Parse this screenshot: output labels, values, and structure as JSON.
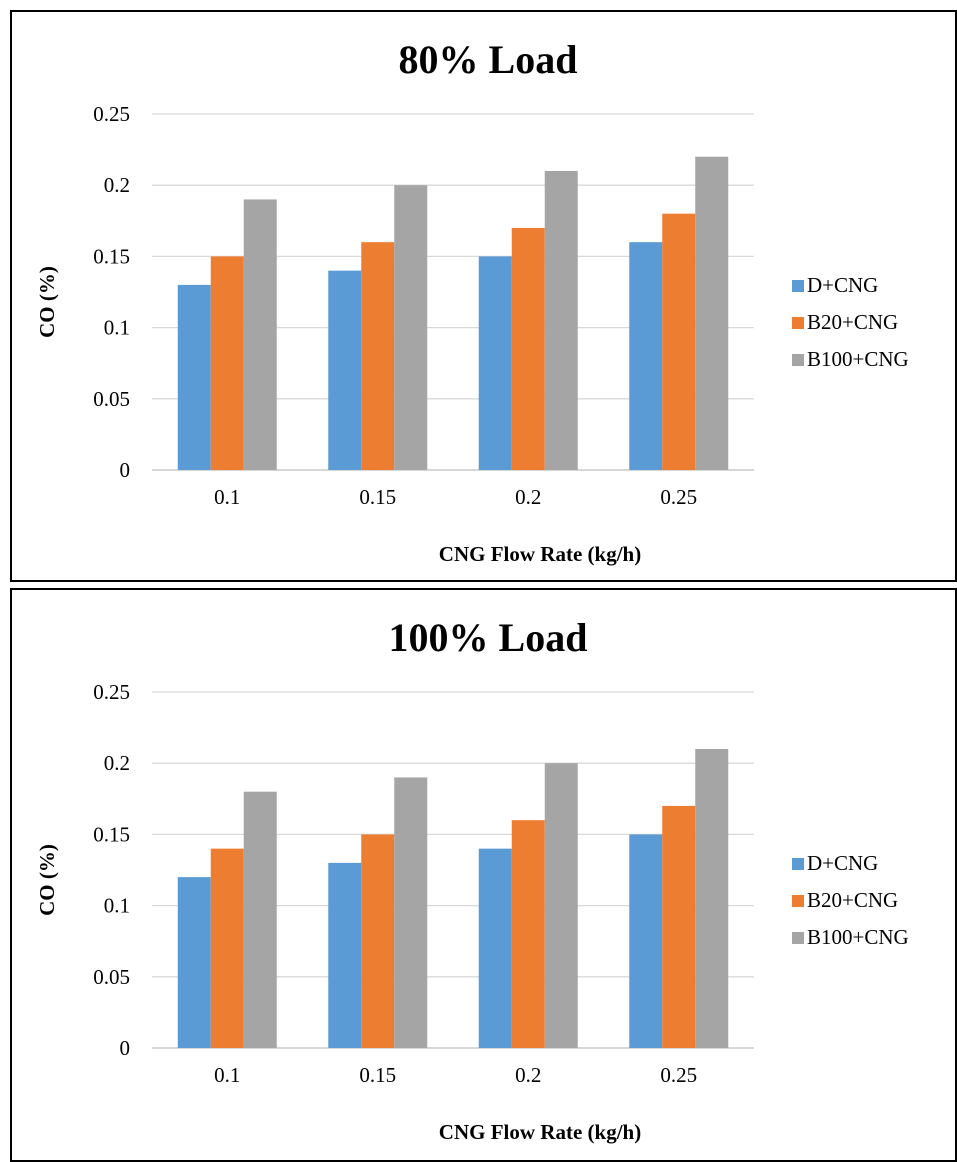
{
  "colors": {
    "gridline": "#d9d9d9",
    "axis": "#bfbfbf"
  },
  "charts": [
    {
      "chart_data": {
        "type": "bar",
        "title": "80% Load",
        "xlabel": "CNG Flow Rate (kg/h)",
        "ylabel": "CO (%)",
        "categories": [
          "0.1",
          "0.15",
          "0.2",
          "0.25"
        ],
        "y_ticks": [
          "0",
          "0.05",
          "0.1",
          "0.15",
          "0.2",
          "0.25"
        ],
        "ylim": [
          0,
          0.25
        ],
        "grid": true,
        "legend": "right",
        "series": [
          {
            "name": "D+CNG",
            "color": "#5b9bd5",
            "values": [
              0.13,
              0.14,
              0.15,
              0.16
            ]
          },
          {
            "name": "B20+CNG",
            "color": "#ed7d31",
            "values": [
              0.15,
              0.16,
              0.17,
              0.18
            ]
          },
          {
            "name": "B100+CNG",
            "color": "#a5a5a5",
            "values": [
              0.19,
              0.2,
              0.21,
              0.22
            ]
          }
        ]
      }
    },
    {
      "chart_data": {
        "type": "bar",
        "title": "100% Load",
        "xlabel": "CNG Flow Rate (kg/h)",
        "ylabel": "CO (%)",
        "categories": [
          "0.1",
          "0.15",
          "0.2",
          "0.25"
        ],
        "y_ticks": [
          "0",
          "0.05",
          "0.1",
          "0.15",
          "0.2",
          "0.25"
        ],
        "ylim": [
          0,
          0.25
        ],
        "grid": true,
        "legend": "right",
        "series": [
          {
            "name": "D+CNG",
            "color": "#5b9bd5",
            "values": [
              0.12,
              0.13,
              0.14,
              0.15
            ]
          },
          {
            "name": "B20+CNG",
            "color": "#ed7d31",
            "values": [
              0.14,
              0.15,
              0.16,
              0.17
            ]
          },
          {
            "name": "B100+CNG",
            "color": "#a5a5a5",
            "values": [
              0.18,
              0.19,
              0.2,
              0.21
            ]
          }
        ]
      }
    }
  ]
}
